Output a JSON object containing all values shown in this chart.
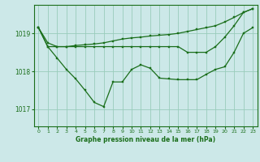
{
  "title": "Graphe pression niveau de la mer (hPa)",
  "bg_color": "#cce8e8",
  "grid_color": "#99ccbb",
  "line_color": "#1a6e1a",
  "marker_color": "#1a6e1a",
  "xlim": [
    -0.5,
    23.5
  ],
  "ylim": [
    1016.55,
    1019.75
  ],
  "yticks": [
    1017,
    1018,
    1019
  ],
  "xticks": [
    0,
    1,
    2,
    3,
    4,
    5,
    6,
    7,
    8,
    9,
    10,
    11,
    12,
    13,
    14,
    15,
    16,
    17,
    18,
    19,
    20,
    21,
    22,
    23
  ],
  "line1_x": [
    0,
    1,
    2,
    3,
    4,
    5,
    6,
    7,
    8,
    9,
    10,
    11,
    12,
    13,
    14,
    15,
    16,
    17,
    18,
    19,
    20,
    21,
    22,
    23
  ],
  "line1_y": [
    1019.15,
    1018.75,
    1018.65,
    1018.65,
    1018.68,
    1018.7,
    1018.72,
    1018.75,
    1018.8,
    1018.85,
    1018.88,
    1018.9,
    1018.93,
    1018.95,
    1018.97,
    1019.0,
    1019.05,
    1019.1,
    1019.15,
    1019.2,
    1019.3,
    1019.42,
    1019.55,
    1019.65
  ],
  "line2_x": [
    0,
    1,
    2,
    3,
    4,
    5,
    6,
    7,
    8,
    9,
    10,
    11,
    12,
    13,
    14,
    15,
    16,
    17,
    18,
    19,
    20,
    21,
    22,
    23
  ],
  "line2_y": [
    1019.15,
    1018.65,
    1018.65,
    1018.65,
    1018.65,
    1018.65,
    1018.65,
    1018.65,
    1018.65,
    1018.65,
    1018.65,
    1018.65,
    1018.65,
    1018.65,
    1018.65,
    1018.65,
    1018.5,
    1018.5,
    1018.5,
    1018.65,
    1018.9,
    1019.2,
    1019.55,
    1019.65
  ],
  "line3_x": [
    0,
    1,
    2,
    3,
    4,
    5,
    6,
    7,
    8,
    9,
    10,
    11,
    12,
    13,
    14,
    15,
    16,
    17,
    18,
    19,
    20,
    21,
    22,
    23
  ],
  "line3_y": [
    1019.15,
    1018.65,
    1018.35,
    1018.05,
    1017.8,
    1017.5,
    1017.18,
    1017.07,
    1017.72,
    1017.72,
    1018.05,
    1018.17,
    1018.08,
    1017.82,
    1017.8,
    1017.78,
    1017.78,
    1017.78,
    1017.92,
    1018.05,
    1018.12,
    1018.5,
    1019.0,
    1019.15
  ]
}
